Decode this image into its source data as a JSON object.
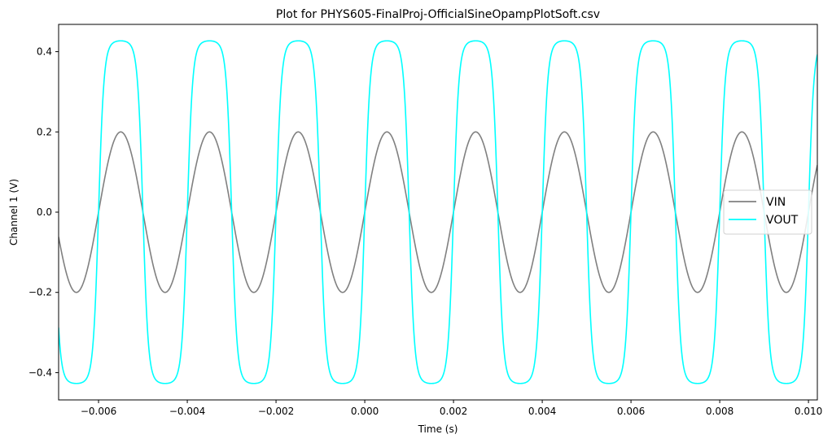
{
  "chart_data": {
    "type": "line",
    "title": "Plot for PHYS605-FinalProj-OfficialSineOpampPlotSoft.csv",
    "xlabel": "Time (s)",
    "ylabel": "Channel 1 (V)",
    "xlim": [
      -0.0069,
      0.0102
    ],
    "ylim": [
      -0.468,
      0.468
    ],
    "xticks": [
      -0.006,
      -0.004,
      -0.002,
      0.0,
      0.002,
      0.004,
      0.006,
      0.008,
      0.01
    ],
    "xtick_labels": [
      "−0.006",
      "−0.004",
      "−0.002",
      "0.000",
      "0.002",
      "0.004",
      "0.006",
      "0.008",
      "0.010"
    ],
    "yticks": [
      -0.4,
      -0.2,
      0.0,
      0.2,
      0.4
    ],
    "ytick_labels": [
      "−0.4",
      "−0.2",
      "0.0",
      "0.2",
      "0.4"
    ],
    "grid": false,
    "legend_position": "right",
    "frequency_hz": 500,
    "peak_time_s": 0.0005,
    "series": [
      {
        "name": "VIN",
        "color": "#808080",
        "amplitude": 0.2,
        "shape": "sine"
      },
      {
        "name": "VOUT",
        "color": "#00ffff",
        "amplitude": 0.427,
        "shape": "soft-clipped sine"
      }
    ]
  }
}
